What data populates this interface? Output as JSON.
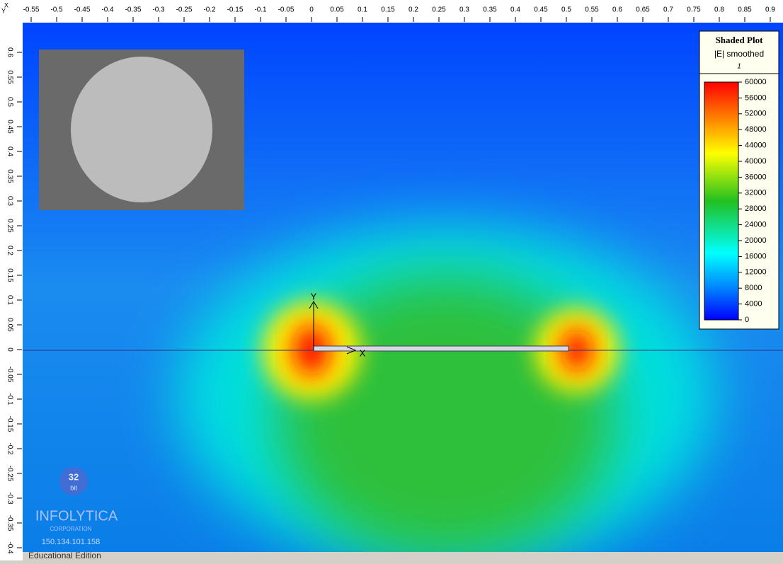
{
  "corner": {
    "x_axis": "X",
    "y_axis": "Y"
  },
  "top_ruler": [
    "-0.55",
    "-0.5",
    "-0.45",
    "-0.4",
    "-0.35",
    "-0.3",
    "-0.25",
    "-0.2",
    "-0.15",
    "-0.1",
    "-0.05",
    "0",
    "0.05",
    "0.1",
    "0.15",
    "0.2",
    "0.25",
    "0.3",
    "0.35",
    "0.4",
    "0.45",
    "0.5",
    "0.55",
    "0.6",
    "0.65",
    "0.7",
    "0.75",
    "0.8",
    "0.85",
    "0.9"
  ],
  "left_ruler": [
    "0.6",
    "0.55",
    "0.5",
    "0.45",
    "0.4",
    "0.35",
    "0.3",
    "0.25",
    "0.2",
    "0.15",
    "0.1",
    "0.05",
    "0",
    "-0.05",
    "-0.1",
    "-0.15",
    "-0.2",
    "-0.25",
    "-0.3",
    "-0.35",
    "-0.4"
  ],
  "legend": {
    "title": "Shaded Plot",
    "quantity": "|E| smoothed",
    "index": "1",
    "scale": [
      "60000",
      "56000",
      "52000",
      "48000",
      "44000",
      "40000",
      "36000",
      "32000",
      "28000",
      "24000",
      "20000",
      "16000",
      "12000",
      "8000",
      "4000",
      "0"
    ]
  },
  "origin": {
    "y_label": "Y",
    "x_label": "X"
  },
  "watermark": {
    "badge": "32",
    "badge_sub": "bit",
    "company": "INFOLYTICA",
    "subtitle": "CORPORATION",
    "ip": "150.134.101.158"
  },
  "status": "Educational Edition"
}
